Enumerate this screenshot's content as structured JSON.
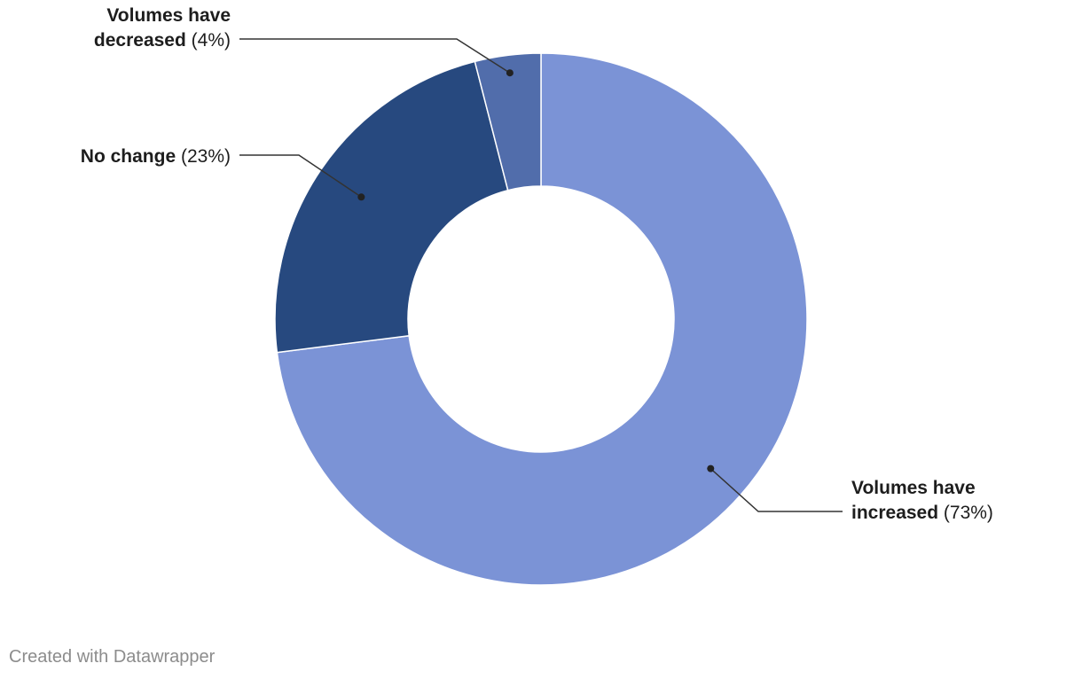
{
  "chart_data": {
    "type": "pie",
    "variant": "donut",
    "title": "",
    "slices": [
      {
        "name": "Volumes have increased",
        "label_line1": "Volumes have",
        "label_line2": "increased",
        "value": 73,
        "pct_text": "(73%)",
        "color": "#7b93d6"
      },
      {
        "name": "No change",
        "label_line1": "No change",
        "label_line2": "",
        "value": 23,
        "pct_text": "(23%)",
        "color": "#27497f"
      },
      {
        "name": "Volumes have decreased",
        "label_line1": "Volumes have",
        "label_line2": "decreased",
        "value": 4,
        "pct_text": "(4%)",
        "color": "#516dab"
      }
    ]
  },
  "footer": {
    "credit": "Created with Datawrapper"
  }
}
